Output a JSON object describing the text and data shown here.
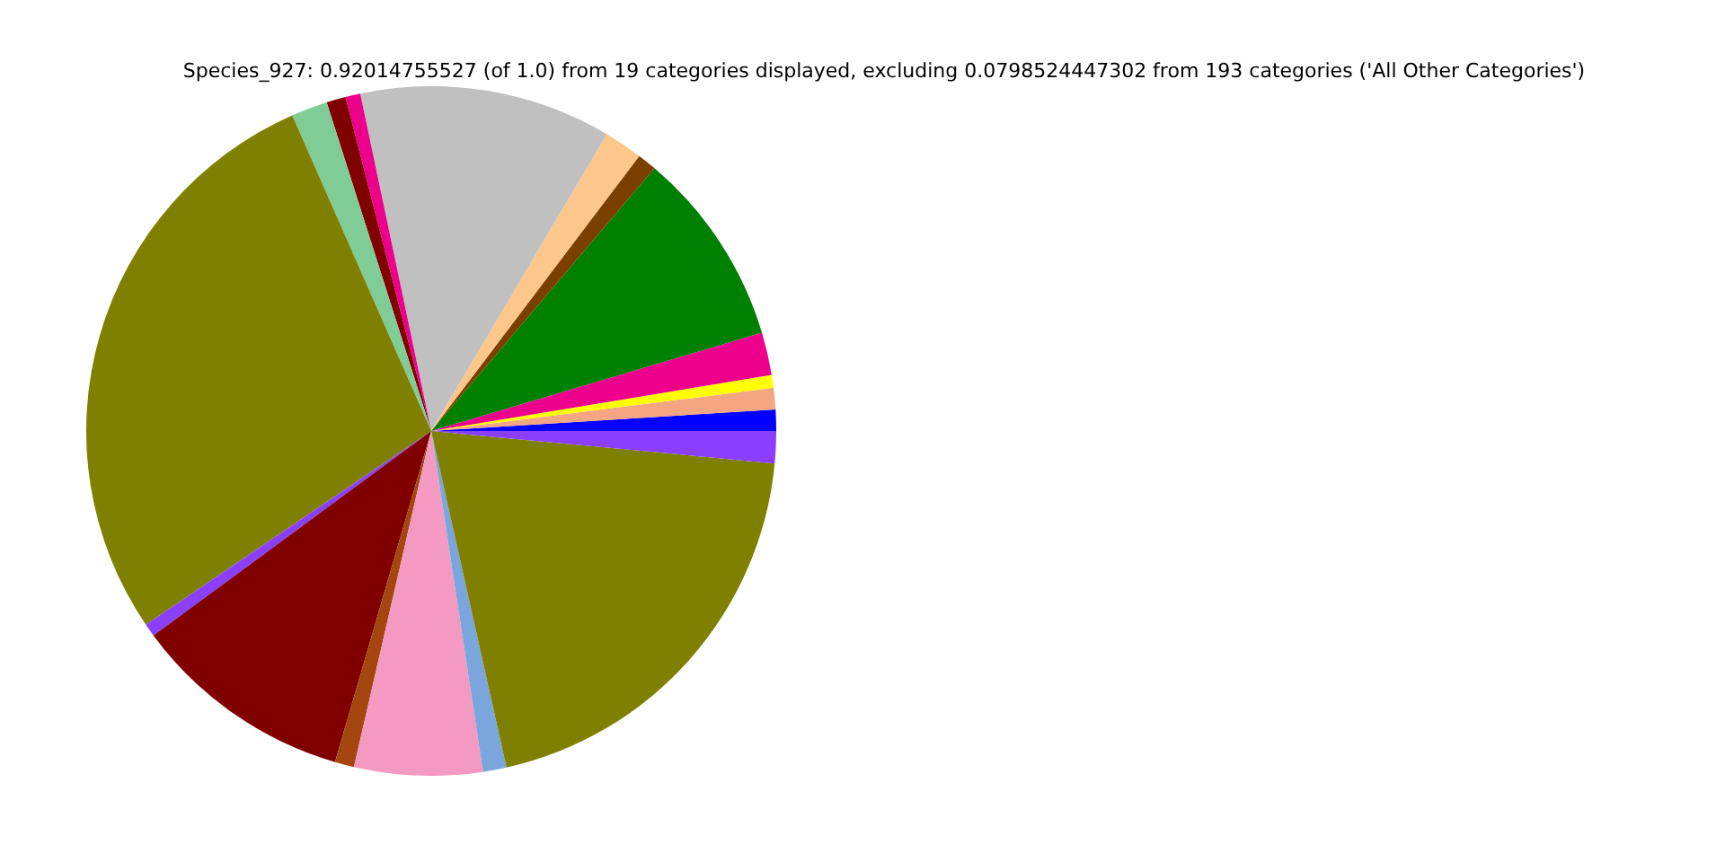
{
  "chart_data": {
    "type": "pie",
    "title": "Species_927: 0.92014755527 (of 1.0) from 19 categories displayed, excluding 0.0798524447302 from 193 categories ('All Other Categories')",
    "categories": [
      null,
      null,
      null,
      null,
      null,
      null,
      null,
      null,
      null,
      null,
      null,
      null,
      null,
      null,
      null,
      null,
      null,
      null,
      null
    ],
    "values": [
      1.0,
      1.0,
      0.6,
      2.0,
      9.2,
      0.9,
      1.8,
      11.8,
      0.7,
      0.9,
      1.7,
      27.9,
      0.6,
      10.4,
      0.9,
      6.0,
      1.1,
      20.0,
      1.5
    ],
    "colors": [
      "#0000ff",
      "#f4a582",
      "#ffff00",
      "#ec008c",
      "#008000",
      "#7b3f00",
      "#fdc68a",
      "#c0c0c0",
      "#ec008c",
      "#800000",
      "#80cc96",
      "#808000",
      "#8a3ffe",
      "#800000",
      "#a5450f",
      "#f49ac2",
      "#7aa6dd",
      "#808000",
      "#8a3ffe"
    ]
  }
}
